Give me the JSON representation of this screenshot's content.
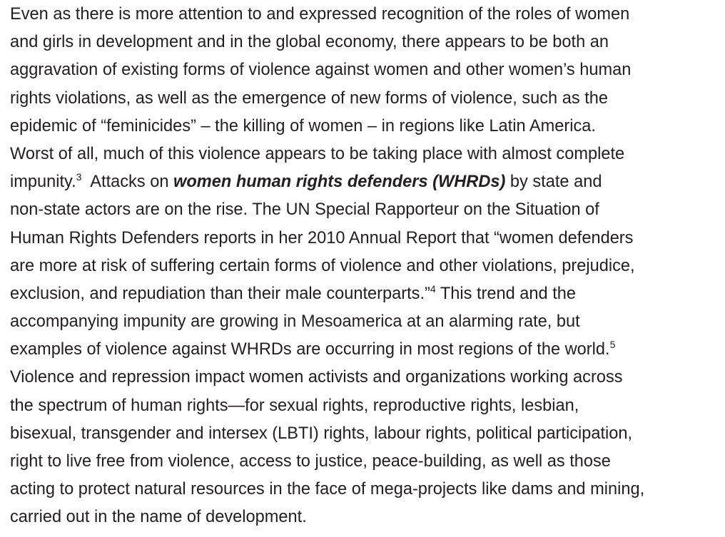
{
  "paragraph": {
    "lines": [
      [
        {
          "text": "Even as there is more attention to and expressed recognition of the roles of women",
          "style": "plain"
        }
      ],
      [
        {
          "text": "and girls in development and in the global economy, there appears to be both an",
          "style": "plain"
        }
      ],
      [
        {
          "text": "aggravation of existing forms of violence against women and other women’s human",
          "style": "plain"
        }
      ],
      [
        {
          "text": "rights violations, as well as the emergence of new forms of violence, such as the",
          "style": "plain"
        }
      ],
      [
        {
          "text": "epidemic of “feminicides” – the killing of women – in regions like Latin America.",
          "style": "plain"
        }
      ],
      [
        {
          "text": "Worst of all, much of this violence appears to be taking place with almost complete",
          "style": "plain"
        }
      ],
      [
        {
          "text": "impunity.",
          "style": "plain"
        },
        {
          "text": "3",
          "style": "sup"
        },
        {
          "text": "  Attacks on ",
          "style": "plain"
        },
        {
          "text": "women human rights defenders (WHRDs)",
          "style": "bold-italic"
        },
        {
          "text": " by state and",
          "style": "plain"
        }
      ],
      [
        {
          "text": "non-state actors are on the rise. The UN Special Rapporteur on the Situation of",
          "style": "plain"
        }
      ],
      [
        {
          "text": "Human Rights Defenders reports in her 2010 Annual Report that “women defenders",
          "style": "plain"
        }
      ],
      [
        {
          "text": "are more at risk of suffering certain forms of violence and other violations, prejudice,",
          "style": "plain"
        }
      ],
      [
        {
          "text": "exclusion, and repudiation than their male counterparts.”",
          "style": "plain"
        },
        {
          "text": "4",
          "style": "sup"
        },
        {
          "text": " This trend and the",
          "style": "plain"
        }
      ],
      [
        {
          "text": "accompanying impunity are growing in Mesoamerica at an alarming rate, but",
          "style": "plain"
        }
      ],
      [
        {
          "text": "examples of violence against WHRDs are occurring in most regions of the world.",
          "style": "plain"
        },
        {
          "text": "5",
          "style": "sup"
        }
      ],
      [
        {
          "text": "Violence and repression impact women activists and organizations working across",
          "style": "plain"
        }
      ],
      [
        {
          "text": "the spectrum of human rights—for sexual rights, reproductive rights, lesbian,",
          "style": "plain"
        }
      ],
      [
        {
          "text": "bisexual, transgender and intersex (LBTI) rights, labour rights, political participation,",
          "style": "plain"
        }
      ],
      [
        {
          "text": "right to live free from violence, access to justice, peace-building, as well as those",
          "style": "plain"
        }
      ],
      [
        {
          "text": "acting to protect natural resources in the face of mega-projects like dams and mining,",
          "style": "plain"
        }
      ],
      [
        {
          "text": "carried out in the name of development.",
          "style": "plain"
        }
      ]
    ]
  }
}
